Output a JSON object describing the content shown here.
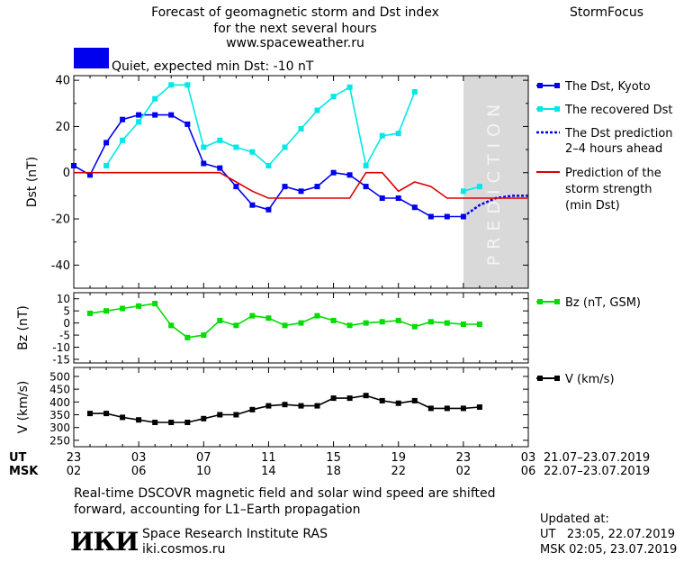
{
  "header": {
    "title_lines": [
      "Forecast of geomagnetic storm and Dst index",
      "for the next several hours",
      "www.spaceweather.ru"
    ],
    "brand": "StormFocus"
  },
  "status": {
    "label": "Quiet, expected min Dst: -10 nT",
    "color": "#0000ee"
  },
  "prediction_label": "PREDICTION",
  "time_axis": {
    "ut_label": "UT",
    "msk_label": "MSK",
    "ut_ticks": [
      "23",
      "03",
      "07",
      "11",
      "15",
      "19",
      "23",
      "03"
    ],
    "msk_ticks": [
      "02",
      "06",
      "10",
      "14",
      "18",
      "22",
      "02",
      "06"
    ],
    "ut_range": "21.07–23.07.2019",
    "msk_range": "22.07–23.07.2019"
  },
  "chart_data": [
    {
      "type": "line",
      "id": "dst",
      "ylabel": "Dst (nT)",
      "ylim": [
        -50,
        42
      ],
      "xlim": [
        0,
        28
      ],
      "yticks": [
        40,
        20,
        0,
        -20,
        -40
      ],
      "prediction_from_hour": 24,
      "series": [
        {
          "name": "The Dst, Kyoto",
          "color": "#0000ee",
          "marker": "square",
          "x": [
            0,
            1,
            2,
            3,
            4,
            5,
            6,
            7,
            8,
            9,
            10,
            11,
            12,
            13,
            14,
            15,
            16,
            17,
            18,
            19,
            20,
            21,
            22,
            23,
            24
          ],
          "y": [
            3,
            -1,
            13,
            23,
            25,
            25,
            25,
            21,
            4,
            2,
            -6,
            -14,
            -16,
            -6,
            -8,
            -6,
            0,
            -1,
            -6,
            -11,
            -11,
            -15,
            -19,
            -19,
            -19
          ]
        },
        {
          "name": "The recovered Dst",
          "color": "#00e8e8",
          "marker": "square",
          "segments": [
            {
              "x": [
                2,
                3,
                4,
                5,
                6,
                7,
                8,
                9,
                10,
                11,
                12,
                13,
                14,
                15,
                16,
                17,
                18,
                19,
                20,
                21
              ],
              "y": [
                3,
                14,
                22,
                32,
                38,
                38,
                11,
                14,
                11,
                9,
                3,
                11,
                19,
                27,
                33,
                37,
                3,
                16,
                17,
                35
              ]
            },
            {
              "x": [
                24,
                25
              ],
              "y": [
                -8,
                -6
              ]
            }
          ]
        },
        {
          "name": "The Dst prediction",
          "name_line2": "2–4 hours ahead",
          "color": "#0000ee",
          "dash": true,
          "x": [
            24,
            25,
            26,
            27,
            28
          ],
          "y": [
            -19,
            -14,
            -11,
            -10,
            -10
          ]
        },
        {
          "name": "Prediction of the",
          "name_line2": "storm strength",
          "name_line3": "(min Dst)",
          "color": "#dd0000",
          "x": [
            0,
            9,
            10,
            11,
            12,
            13,
            14,
            15,
            16,
            17,
            18,
            19,
            20,
            21,
            22,
            23,
            24,
            28
          ],
          "y": [
            0,
            0,
            -4,
            -8,
            -11,
            -11,
            -11,
            -11,
            -11,
            -11,
            0,
            0,
            -8,
            -4,
            -6,
            -11,
            -11,
            -11
          ]
        }
      ]
    },
    {
      "type": "line",
      "id": "bz",
      "ylabel": "Bz (nT)",
      "ylim": [
        -16.5,
        12.5
      ],
      "xlim": [
        0,
        28
      ],
      "yticks": [
        "10",
        "5",
        "0",
        "-5",
        "-10",
        "-15"
      ],
      "series": [
        {
          "name": "Bz (nT, GSM)",
          "color": "#00dd00",
          "marker": "square",
          "x": [
            1,
            2,
            3,
            4,
            5,
            6,
            7,
            8,
            9,
            10,
            11,
            12,
            13,
            14,
            15,
            16,
            17,
            18,
            19,
            20,
            21,
            22,
            23,
            24,
            25
          ],
          "y": [
            4,
            5,
            6,
            7,
            8,
            -1,
            -6,
            -5,
            1,
            -1,
            3,
            2,
            -1,
            0,
            3,
            1,
            -1,
            0,
            0.5,
            1,
            -1.5,
            0.5,
            0,
            -0.5,
            -0.5
          ]
        }
      ]
    },
    {
      "type": "line",
      "id": "v",
      "ylabel": "V (km/s)",
      "ylim": [
        225,
        535
      ],
      "xlim": [
        0,
        28
      ],
      "yticks": [
        "500",
        "450",
        "400",
        "350",
        "300",
        "250"
      ],
      "series": [
        {
          "name": "V (km/s)",
          "color": "#000000",
          "marker": "square",
          "x": [
            1,
            2,
            3,
            4,
            5,
            6,
            7,
            8,
            9,
            10,
            11,
            12,
            13,
            14,
            15,
            16,
            17,
            18,
            19,
            20,
            21,
            22,
            23,
            24,
            25
          ],
          "y": [
            355,
            355,
            340,
            330,
            320,
            320,
            320,
            335,
            350,
            350,
            370,
            385,
            390,
            385,
            385,
            415,
            415,
            425,
            405,
            395,
            405,
            375,
            375,
            375,
            380
          ]
        }
      ]
    }
  ],
  "footer": {
    "note_lines": [
      "Real-time DSCOVR magnetic field and solar wind speed are shifted",
      "forward, accounting for L1–Earth propagation"
    ],
    "logo": "ИКИ",
    "institute": "Space Research Institute RAS",
    "site": "iki.cosmos.ru",
    "updated_label": "Updated at:",
    "updated_ut": "UT   23:05, 22.07.2019",
    "updated_msk": "MSK 02:05, 23.07.2019"
  }
}
